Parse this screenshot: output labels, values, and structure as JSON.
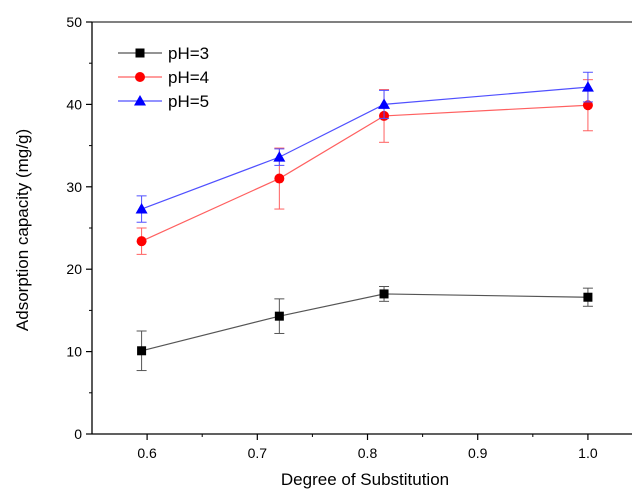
{
  "chart_data": {
    "type": "line",
    "title": "",
    "xlabel": "Degree of Substitution",
    "ylabel": "Adsorption capacity (mg/g)",
    "xlim": [
      0.55,
      1.04
    ],
    "ylim": [
      0,
      50
    ],
    "x_ticks": [
      0.6,
      0.7,
      0.8,
      0.9,
      1.0
    ],
    "x_tick_labels": [
      "0.6",
      "0.7",
      "0.8",
      "0.9",
      "1.0"
    ],
    "y_ticks": [
      0,
      10,
      20,
      30,
      40,
      50
    ],
    "y_tick_labels": [
      "0",
      "10",
      "20",
      "30",
      "40",
      "50"
    ],
    "grid": false,
    "legend_position": "top-left",
    "x": [
      0.595,
      0.72,
      0.815,
      1.0
    ],
    "series": [
      {
        "name": "pH=3",
        "color": "#000000",
        "line_color": "#555555",
        "marker": "square",
        "values": [
          10.1,
          14.3,
          17.0,
          16.6
        ],
        "errors": [
          2.4,
          2.1,
          0.9,
          1.1
        ]
      },
      {
        "name": "pH=4",
        "color": "#ff0000",
        "line_color": "#ff6060",
        "marker": "circle",
        "values": [
          23.4,
          31.0,
          38.6,
          39.9
        ],
        "errors": [
          1.6,
          3.7,
          3.2,
          3.1
        ]
      },
      {
        "name": "pH=5",
        "color": "#0000ff",
        "line_color": "#5050ff",
        "marker": "triangle",
        "values": [
          27.3,
          33.6,
          40.0,
          42.1
        ],
        "errors": [
          1.6,
          1.0,
          1.7,
          1.8
        ]
      }
    ]
  }
}
